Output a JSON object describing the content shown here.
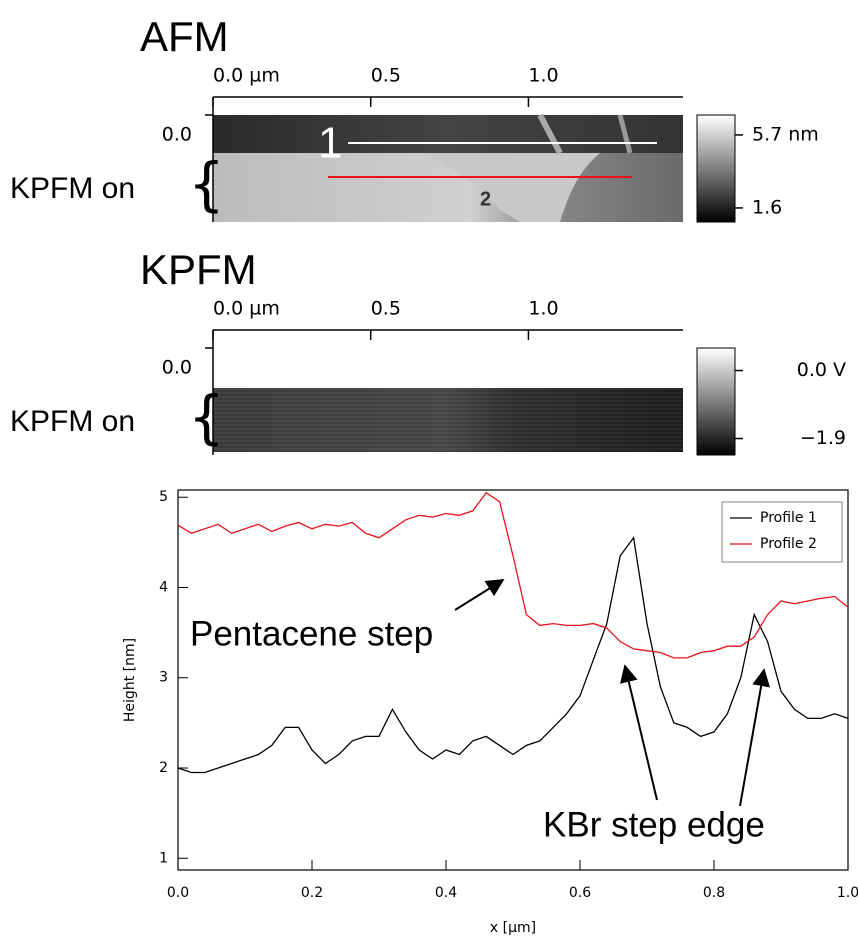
{
  "chart_data": [
    {
      "type": "image",
      "title": "AFM",
      "xlim": [
        0,
        1.49
      ],
      "xticks": [
        {
          "value": 0,
          "label": "0.0 µm"
        },
        0.5,
        {
          "value": 1,
          "label": "1.0"
        }
      ],
      "ylim": [
        0,
        0.17
      ],
      "yticks": [
        {
          "value": 0,
          "label": "0.0"
        }
      ],
      "clim": [
        0.81,
        6.82
      ],
      "colorbar_ticks": [
        {
          "value": 5.7,
          "label": "5.7 nm"
        },
        {
          "value": 1.6,
          "label": "1.6"
        }
      ],
      "side_label": "KPFM on",
      "profile_labels": [
        "1",
        "2"
      ]
    },
    {
      "type": "image",
      "title": "KPFM",
      "xlim": [
        0,
        1.49
      ],
      "xticks": [
        {
          "value": 0,
          "label": "0.0 µm"
        },
        0.5,
        {
          "value": 1,
          "label": "1.0"
        }
      ],
      "ylim": [
        0,
        0.17
      ],
      "yticks": [
        {
          "value": 0,
          "label": "0.0"
        }
      ],
      "clim": [
        -2.36,
        0.63
      ],
      "colorbar_ticks": [
        {
          "value": 0,
          "label": "0.0 V"
        },
        {
          "value": -1.9,
          "label": "−1.9"
        }
      ],
      "side_label": "KPFM on"
    },
    {
      "type": "line",
      "x_label": "x [µm]",
      "y_label": "Height [nm]",
      "x": [
        0,
        0.02,
        0.04,
        0.06,
        0.08,
        0.1,
        0.12,
        0.14,
        0.16,
        0.18,
        0.2,
        0.22,
        0.24,
        0.26,
        0.28,
        0.3,
        0.32,
        0.34,
        0.36,
        0.38,
        0.4,
        0.42,
        0.44,
        0.46,
        0.48,
        0.5,
        0.52,
        0.54,
        0.56,
        0.58,
        0.6,
        0.62,
        0.64,
        0.66,
        0.68,
        0.7,
        0.72,
        0.74,
        0.76,
        0.78,
        0.8,
        0.82,
        0.84,
        0.86,
        0.88,
        0.9,
        0.92,
        0.94,
        0.96,
        0.98,
        1.0
      ],
      "series": [
        {
          "name": "Profile 1",
          "color": "#000000",
          "values": [
            2.0,
            1.95,
            1.95,
            2.0,
            2.05,
            2.1,
            2.15,
            2.25,
            2.45,
            2.45,
            2.2,
            2.05,
            2.15,
            2.3,
            2.35,
            2.35,
            2.65,
            2.4,
            2.2,
            2.1,
            2.2,
            2.15,
            2.3,
            2.35,
            2.25,
            2.15,
            2.25,
            2.3,
            2.45,
            2.6,
            2.8,
            3.2,
            3.6,
            4.35,
            4.55,
            3.6,
            2.9,
            2.5,
            2.45,
            2.35,
            2.4,
            2.6,
            3.0,
            3.7,
            3.4,
            2.85,
            2.65,
            2.55,
            2.55,
            2.6,
            2.55
          ]
        },
        {
          "name": "Profile 2",
          "color": "#e8141c",
          "values": [
            4.69,
            4.6,
            4.65,
            4.7,
            4.6,
            4.65,
            4.7,
            4.62,
            4.68,
            4.72,
            4.65,
            4.7,
            4.68,
            4.72,
            4.6,
            4.55,
            4.65,
            4.75,
            4.8,
            4.78,
            4.82,
            4.8,
            4.85,
            5.05,
            4.95,
            4.35,
            3.7,
            3.58,
            3.6,
            3.58,
            3.58,
            3.6,
            3.55,
            3.4,
            3.32,
            3.3,
            3.28,
            3.22,
            3.22,
            3.28,
            3.3,
            3.35,
            3.35,
            3.45,
            3.7,
            3.85,
            3.82,
            3.85,
            3.88,
            3.9,
            3.78
          ]
        }
      ],
      "xlim": [
        0,
        1
      ],
      "xticks": [
        {
          "value": 0,
          "label": "0.0"
        },
        0.2,
        0.4,
        0.6,
        0.8,
        {
          "value": 1,
          "label": "1.0"
        }
      ],
      "ylim": [
        0.87,
        5.08
      ],
      "yticks": [
        1,
        2,
        3,
        4,
        5
      ],
      "legend": "upper right",
      "annotations": [
        "Pentacene step",
        "KBr step edge"
      ]
    }
  ]
}
